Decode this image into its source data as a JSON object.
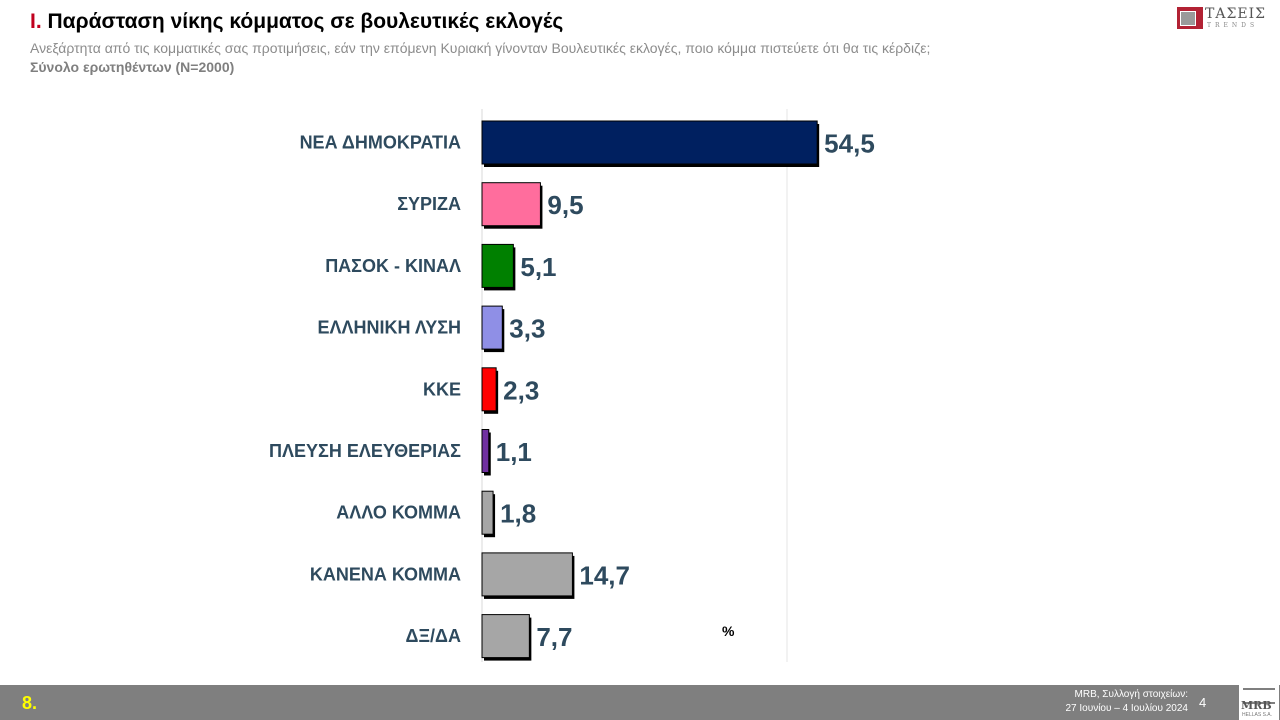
{
  "header": {
    "title_num": "I.",
    "title_text": "Παράσταση νίκης κόμματος σε βουλευτικές εκλογές",
    "subtitle": "Ανεξάρτητα από τις κομματικές σας προτιμήσεις, εάν την επόμενη Κυριακή γίνονταν Βουλευτικές εκλογές, ποιο κόμμα πιστεύετε ότι θα τις κέρδιζε;",
    "base": "Σύνολο ερωτηθέντων (N=2000)"
  },
  "logo": {
    "word": "ΤΑΣΕΙΣ",
    "sub": "TRENDS"
  },
  "chart_data": {
    "type": "bar",
    "orientation": "horizontal",
    "title": "",
    "xlabel": "",
    "ylabel": "",
    "unit_label": "%",
    "xlim": [
      0,
      100
    ],
    "grid": false,
    "categories": [
      "ΝΕΑ ΔΗΜΟΚΡΑΤΙΑ",
      "ΣΥΡΙΖΑ",
      "ΠΑΣΟΚ - ΚΙΝΑΛ",
      "ΕΛΛΗΝΙΚΗ ΛΥΣΗ",
      "ΚΚΕ",
      "ΠΛΕΥΣΗ ΕΛΕΥΘΕΡΙΑΣ",
      "ΑΛΛΟ ΚΟΜΜΑ",
      "ΚΑΝΕΝΑ ΚΟΜΜΑ",
      "ΔΞ/ΔΑ"
    ],
    "values": [
      54.5,
      9.5,
      5.1,
      3.3,
      2.3,
      1.1,
      1.8,
      14.7,
      7.7
    ],
    "value_labels": [
      "54,5",
      "9,5",
      "5,1",
      "3,3",
      "2,3",
      "1,1",
      "1,8",
      "14,7",
      "7,7"
    ],
    "colors": [
      "#002060",
      "#ff6d9d",
      "#008000",
      "#8f8fe6",
      "#ff0000",
      "#7030a0",
      "#a6a6a6",
      "#a6a6a6",
      "#a6a6a6"
    ]
  },
  "footer": {
    "slide_number": "8.",
    "source_line1": "MRB, Συλλογή στοιχείων:",
    "source_line2": "27 Ιουνίου – 4 Ιουλίου 2024",
    "page_number": "4",
    "brand": "MRB",
    "brand_sub": "HELLAS S.A."
  }
}
